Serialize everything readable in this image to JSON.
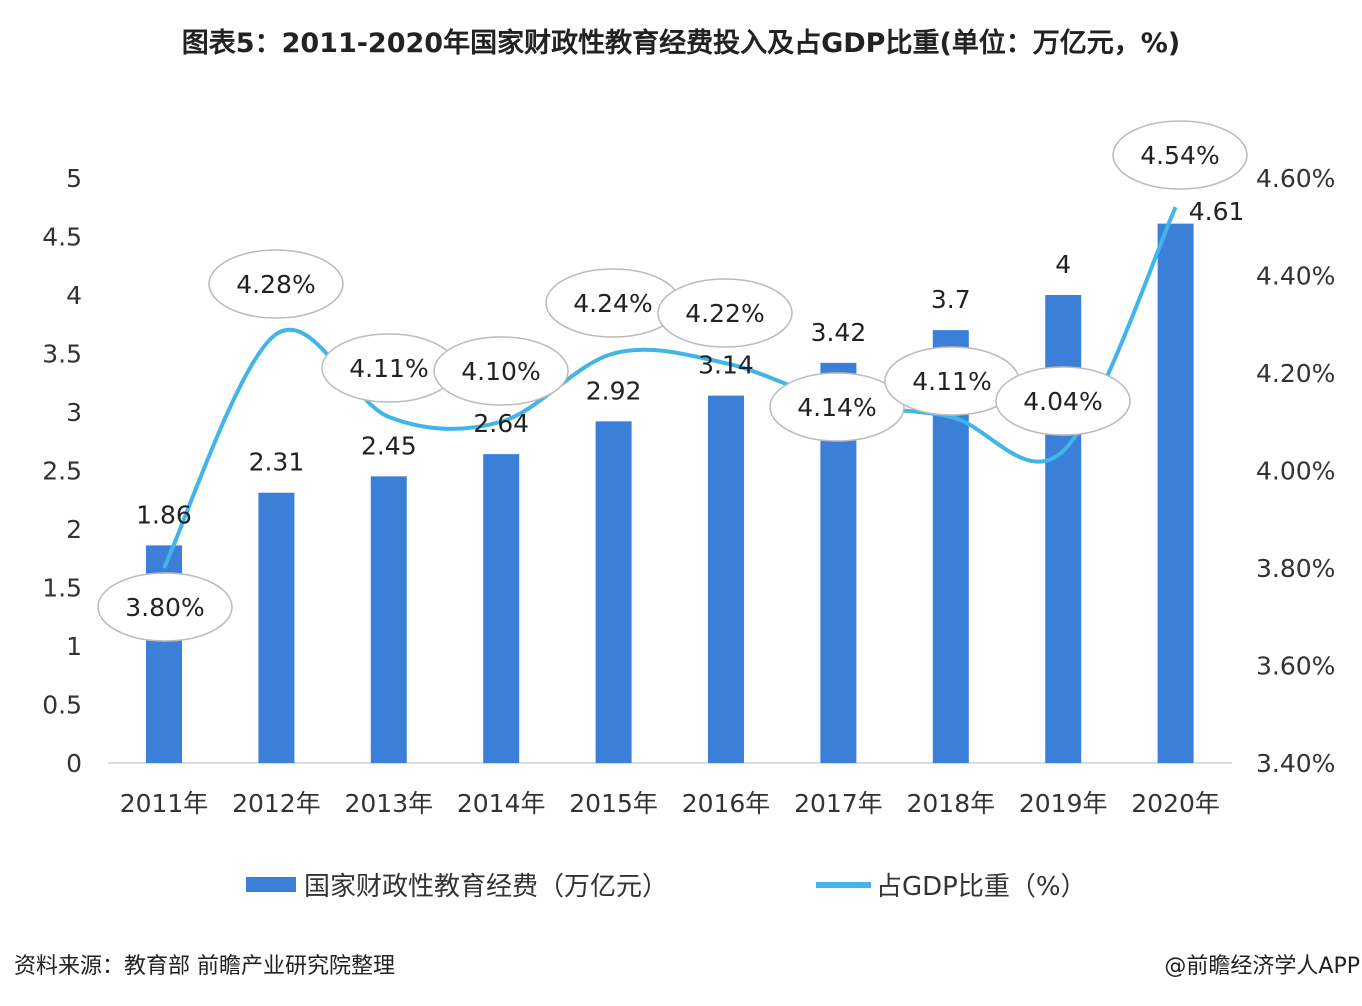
{
  "chart_data": {
    "type": "bar+line",
    "title": "图表5：2011-2020年国家财政性教育经费投入及占GDP比重(单位：万亿元，%)",
    "categories": [
      "2011年",
      "2012年",
      "2013年",
      "2014年",
      "2015年",
      "2016年",
      "2017年",
      "2018年",
      "2019年",
      "2020年"
    ],
    "series": [
      {
        "name": "国家财政性教育经费（万亿元）",
        "type": "bar",
        "axis": "left",
        "color": "#3b7fd9",
        "values": [
          1.86,
          2.31,
          2.45,
          2.64,
          2.92,
          3.14,
          3.42,
          3.7,
          4,
          4.61
        ],
        "labels": [
          "1.86",
          "2.31",
          "2.45",
          "2.64",
          "2.92",
          "3.14",
          "3.42",
          "3.7",
          "4",
          "4.61"
        ]
      },
      {
        "name": "占GDP比重（%）",
        "type": "line",
        "axis": "right",
        "color": "#41b4ea",
        "values": [
          3.8,
          4.28,
          4.11,
          4.1,
          4.24,
          4.22,
          4.14,
          4.11,
          4.04,
          4.54
        ],
        "labels": [
          "3.80%",
          "4.28%",
          "4.11%",
          "4.10%",
          "4.24%",
          "4.22%",
          "4.14%",
          "4.11%",
          "4.04%",
          "4.54%"
        ]
      }
    ],
    "left_axis": {
      "ylim": [
        0,
        5
      ],
      "ticks": [
        "0",
        "0.5",
        "1",
        "1.5",
        "2",
        "2.5",
        "3",
        "3.5",
        "4",
        "4.5",
        "5"
      ]
    },
    "right_axis": {
      "ylim": [
        3.4,
        4.6
      ],
      "ticks": [
        "3.40%",
        "3.60%",
        "3.80%",
        "4.00%",
        "4.20%",
        "4.40%",
        "4.60%"
      ]
    },
    "grid": false,
    "legend": "bottom"
  },
  "footer": {
    "source": "资料来源：教育部 前瞻产业研究院整理",
    "credit": "@前瞻经济学人APP"
  }
}
